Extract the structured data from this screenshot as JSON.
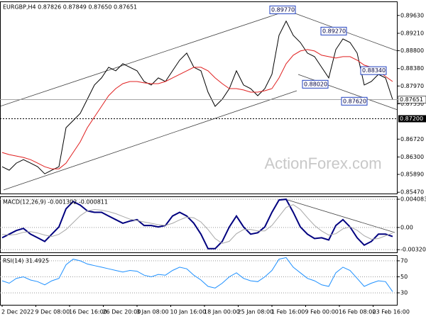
{
  "chart_data": [
    {
      "type": "line",
      "title": "EURGBP,H4 0.87826 0.87849 0.87650 0.87651",
      "ylim": [
        0.8544,
        0.8996
      ],
      "yticks": [
        {
          "value": 0.8963,
          "label": "0.89630"
        },
        {
          "value": 0.8921,
          "label": "0.89210"
        },
        {
          "value": 0.888,
          "label": "0.88800"
        },
        {
          "value": 0.8838,
          "label": "0.88380"
        },
        {
          "value": 0.8797,
          "label": "0.87970"
        },
        {
          "value": 0.8755,
          "label": "0.87550"
        },
        {
          "value": 0.8672,
          "label": "0.86720"
        },
        {
          "value": 0.863,
          "label": "0.86300"
        },
        {
          "value": 0.8589,
          "label": "0.85890"
        },
        {
          "value": 0.8547,
          "label": "0.85470"
        }
      ],
      "grid": false,
      "series": [
        {
          "color": "#000000",
          "values": [
            0.86071,
            0.85988,
            0.86155,
            0.86238,
            0.86155,
            0.86071,
            0.85904,
            0.85988,
            0.86071,
            0.8699,
            0.87157,
            0.87324,
            0.87658,
            0.87993,
            0.8816,
            0.8841,
            0.88327,
            0.88494,
            0.8841,
            0.88327,
            0.88076,
            0.87993,
            0.8816,
            0.88076,
            0.88327,
            0.88577,
            0.88744,
            0.8841,
            0.88327,
            0.87825,
            0.87491,
            0.87658,
            0.87909,
            0.88327,
            0.87993,
            0.87909,
            0.87742,
            0.87909,
            0.88243,
            0.89162,
            0.89496,
            0.89162,
            0.88995,
            0.88744,
            0.88661,
            0.8841,
            0.8816,
            0.88828,
            0.89078,
            0.88995,
            0.88744,
            0.87993,
            0.88076,
            0.88243,
            0.8816,
            0.87651
          ]
        },
        {
          "color": "#e02020",
          "values": [
            0.86406,
            0.86355,
            0.86322,
            0.86289,
            0.86238,
            0.86155,
            0.86071,
            0.86021,
            0.86021,
            0.86155,
            0.86406,
            0.86656,
            0.8699,
            0.87241,
            0.87491,
            0.87742,
            0.87909,
            0.88026,
            0.88076,
            0.88076,
            0.88043,
            0.88026,
            0.88026,
            0.88076,
            0.8816,
            0.88243,
            0.88327,
            0.8841,
            0.8841,
            0.88327,
            0.8816,
            0.88026,
            0.87909,
            0.87909,
            0.87876,
            0.87825,
            0.87825,
            0.87859,
            0.87909,
            0.8816,
            0.88494,
            0.88694,
            0.88794,
            0.88828,
            0.88794,
            0.88694,
            0.88661,
            0.88627,
            0.88661,
            0.88661,
            0.88577,
            0.8846,
            0.8841,
            0.88327,
            0.88193,
            0.88076
          ]
        }
      ],
      "annotations": [
        {
          "value": 0.8977,
          "label": "0.89770"
        },
        {
          "value": 0.8927,
          "label": "0.89270"
        },
        {
          "value": 0.8834,
          "label": "0.88340"
        },
        {
          "value": 0.8802,
          "label": "0.88020"
        },
        {
          "value": 0.8762,
          "label": "0.87620"
        }
      ],
      "current_price": {
        "value": 0.87651,
        "label": "0.87651"
      },
      "level": {
        "value": 0.872,
        "label": "0.87200"
      }
    },
    {
      "type": "line",
      "title": "MACD(12,26,9) -0.001302 -0.000811",
      "ylim": [
        -0.0036,
        0.0045
      ],
      "yticks": [
        0.004083,
        {
          "value": 0,
          "label": "0.00"
        },
        -0.003209
      ],
      "grid": true,
      "series": [
        {
          "color": "#00007f",
          "values": [
            -0.00149,
            -0.00097,
            -0.00044,
            -0.00013,
            -0.00097,
            -0.00149,
            -0.00202,
            -0.00097,
            8e-05,
            0.00271,
            0.00376,
            0.00324,
            0.0024,
            0.00219,
            0.00219,
            0.00166,
            0.00114,
            0.00061,
            0.00093,
            0.00114,
            0.00029,
            0.00029,
            8e-05,
            0.00029,
            0.00166,
            0.00219,
            0.00166,
            0.00061,
            -0.00097,
            -0.00307,
            -0.00307,
            -0.00202,
            8e-05,
            0.00166,
            8e-05,
            -0.00097,
            -0.00076,
            8e-05,
            0.00219,
            0.00398,
            0.00408,
            0.00219,
            8e-05,
            -0.00097,
            -0.0016,
            -0.00149,
            -0.00181,
            0.00029,
            0.00114,
            8e-05,
            -0.00149,
            -0.00255,
            -0.00202,
            -0.00097,
            -0.00097,
            -0.0013
          ]
        },
        {
          "color": "#a8a8a8",
          "values": [
            -0.001,
            -0.0011,
            -0.001,
            -0.0007,
            -0.0006,
            -0.0008,
            -0.0011,
            -0.0013,
            -0.001,
            -0.0003,
            0.0007,
            0.0017,
            0.0024,
            0.0026,
            0.0025,
            0.0023,
            0.002,
            0.0016,
            0.0012,
            0.001,
            0.0008,
            0.0006,
            0.0004,
            0.0003,
            0.0006,
            0.0011,
            0.0015,
            0.0014,
            0.0008,
            -0.0003,
            -0.0016,
            -0.0023,
            -0.002,
            -0.0009,
            -0.0003,
            -0.0003,
            -0.0005,
            -0.0005,
            0.0003,
            0.0016,
            0.0029,
            0.0033,
            0.0026,
            0.0014,
            0.0003,
            -0.0005,
            -0.0011,
            -0.0009,
            -0.0002,
            0.0001,
            -0.0004,
            -0.0012,
            -0.0017,
            -0.0016,
            -0.0012,
            -0.00081
          ]
        }
      ]
    },
    {
      "type": "line",
      "title": "RSI(14) 31.4925",
      "ylim": [
        15,
        77
      ],
      "yticks": [
        70,
        50,
        30
      ],
      "grid": true,
      "series": [
        {
          "color": "#1e90ff",
          "values": [
            45,
            42,
            48,
            50,
            46,
            44,
            40,
            45,
            48,
            65,
            72,
            70,
            66,
            64,
            62,
            60,
            58,
            56,
            58,
            57,
            52,
            50,
            53,
            52,
            58,
            62,
            60,
            52,
            46,
            38,
            36,
            42,
            50,
            55,
            48,
            45,
            44,
            50,
            58,
            72,
            74,
            62,
            55,
            48,
            45,
            40,
            38,
            55,
            62,
            58,
            48,
            38,
            42,
            45,
            44,
            31.4925
          ]
        }
      ]
    }
  ],
  "x_axis_labels": [
    "2 Dec 2022",
    "9 Dec 08:00",
    "16 Dec 16:00",
    "26 Dec 20:00",
    "3 Jan 08:00",
    "10 Jan 16:00",
    "18 Jan 00:00",
    "25 Jan 08:00",
    "1 Feb 16:00",
    "9 Feb 00:00",
    "16 Feb 08:00",
    "23 Feb 16:00"
  ],
  "watermark": "ActionForex.com"
}
